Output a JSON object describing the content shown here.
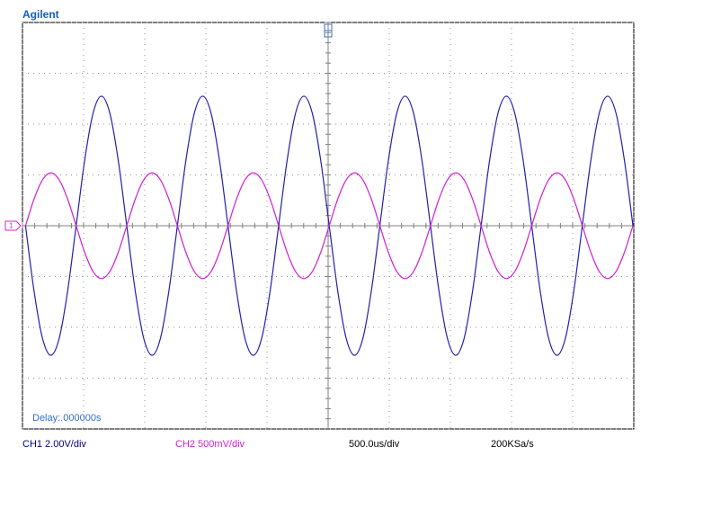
{
  "chart_data": {
    "type": "line",
    "title": "Agilent",
    "annotations": [
      "Delay:.000000s",
      "500.0us/div",
      "200KSa/s"
    ],
    "x": [
      -2475,
      -2406,
      -2337,
      -2268,
      -2199,
      -2130,
      -2061,
      -1992,
      -1923,
      -1854,
      -1785,
      -1716,
      -1647,
      -1578,
      -1509,
      -1440,
      -1371,
      -1302,
      -1233,
      -1164,
      -1095,
      -1026,
      -957,
      -888,
      -819,
      -750,
      -681,
      -612,
      -543,
      -474,
      -405,
      -336,
      -267,
      -198,
      -129,
      -60,
      9,
      78,
      147,
      216,
      285,
      354,
      423,
      492,
      561,
      630,
      699,
      768,
      837,
      906,
      975,
      1044,
      1113,
      1182,
      1251,
      1320,
      1389,
      1458,
      1527,
      1596,
      1665,
      1734,
      1803,
      1872,
      1941,
      2010,
      2079,
      2148,
      2217,
      2286,
      2355,
      2424,
      2493
    ],
    "series": [
      {
        "name": "CH1 2.00V/div",
        "color": "#1f1fb0",
        "axis": "y",
        "values": [
          0,
          -2.55,
          -4.42,
          -5.1,
          -4.42,
          -2.55,
          0,
          2.55,
          4.42,
          5.1,
          4.42,
          2.55,
          0,
          -2.55,
          -4.42,
          -5.1,
          -4.42,
          -2.55,
          0,
          2.55,
          4.42,
          5.1,
          4.42,
          2.55,
          0,
          -2.55,
          -4.42,
          -5.1,
          -4.42,
          -2.55,
          0,
          2.55,
          4.42,
          5.1,
          4.42,
          2.55,
          0,
          -2.55,
          -4.42,
          -5.1,
          -4.42,
          -2.55,
          0,
          2.55,
          4.42,
          5.1,
          4.42,
          2.55,
          0,
          -2.55,
          -4.42,
          -5.1,
          -4.42,
          -2.55,
          0,
          2.55,
          4.42,
          5.1,
          4.42,
          2.55,
          0,
          -2.55,
          -4.42,
          -5.1,
          -4.42,
          -2.55,
          0,
          2.55,
          4.42,
          5.1,
          4.42,
          2.55,
          0
        ]
      },
      {
        "name": "CH2 500mV/div",
        "color": "#d020d0",
        "axis": "y2",
        "values": [
          0,
          0.26,
          0.45,
          0.52,
          0.45,
          0.26,
          0,
          -0.26,
          -0.45,
          -0.52,
          -0.45,
          -0.26,
          0,
          0.26,
          0.45,
          0.52,
          0.45,
          0.26,
          0,
          -0.26,
          -0.45,
          -0.52,
          -0.45,
          -0.26,
          0,
          0.26,
          0.45,
          0.52,
          0.45,
          0.26,
          0,
          -0.26,
          -0.45,
          -0.52,
          -0.45,
          -0.26,
          0,
          0.26,
          0.45,
          0.52,
          0.45,
          0.26,
          0,
          -0.26,
          -0.45,
          -0.52,
          -0.45,
          -0.26,
          0,
          0.26,
          0.45,
          0.52,
          0.45,
          0.26,
          0,
          -0.26,
          -0.45,
          -0.52,
          -0.45,
          -0.26,
          0,
          0.26,
          0.45,
          0.52,
          0.45,
          0.26,
          0,
          -0.26,
          -0.45,
          -0.52,
          -0.45,
          -0.26,
          0
        ]
      }
    ],
    "xlim": [
      -2500,
      2500
    ],
    "xticks": [
      -2500,
      -2000,
      -1500,
      -1000,
      -500,
      0,
      500,
      1000,
      1500,
      2000,
      2500
    ],
    "ylim": [
      -8,
      8
    ],
    "yticks": [
      -8,
      -6,
      -4,
      -2,
      0,
      2,
      4,
      6,
      8
    ],
    "y2lim": [
      -2,
      2
    ],
    "grid": true
  }
}
